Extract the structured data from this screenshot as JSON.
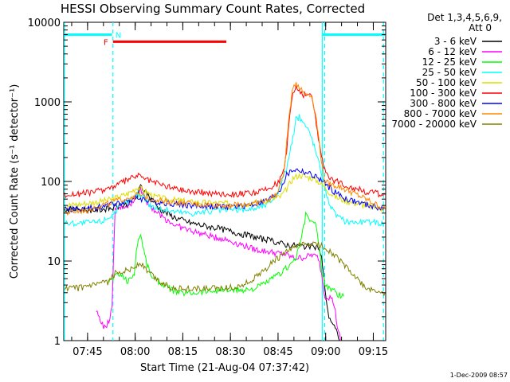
{
  "chart_data": {
    "type": "line",
    "title": "HESSI Observing Summary Count Rates, Corrected",
    "xlabel": "Start Time (21-Aug-04 07:37:42)",
    "ylabel": "Corrected Count Rate (s⁻¹ detector⁻¹)",
    "yscale": "log",
    "ylim": [
      1,
      10000
    ],
    "xlim_minutes": [
      -0.2,
      101.2
    ],
    "x_ticks": [
      {
        "label": "07:45",
        "t": 7.3
      },
      {
        "label": "08:00",
        "t": 22.3
      },
      {
        "label": "08:15",
        "t": 37.3
      },
      {
        "label": "08:30",
        "t": 52.3
      },
      {
        "label": "08:45",
        "t": 67.3
      },
      {
        "label": "09:00",
        "t": 82.3
      },
      {
        "label": "09:15",
        "t": 97.3
      }
    ],
    "y_ticks": [
      {
        "label": "1",
        "v": 1
      },
      {
        "label": "10",
        "v": 10
      },
      {
        "label": "100",
        "v": 100
      },
      {
        "label": "1000",
        "v": 1000
      },
      {
        "label": "10000",
        "v": 10000
      }
    ],
    "legend_header": [
      "Det 1,3,4,5,6,9,",
      "Att 0"
    ],
    "legend_position": "right",
    "series": [
      {
        "name": "3 - 6 keV",
        "color": "#000000",
        "points": [
          [
            0,
            45
          ],
          [
            10,
            44
          ],
          [
            15,
            46
          ],
          [
            20,
            52
          ],
          [
            23,
            65
          ],
          [
            24,
            88
          ],
          [
            26,
            70
          ],
          [
            30,
            45
          ],
          [
            35,
            35
          ],
          [
            40,
            30
          ],
          [
            50,
            25
          ],
          [
            60,
            20
          ],
          [
            65,
            18
          ],
          [
            70,
            16
          ],
          [
            75,
            15.5
          ],
          [
            79,
            15
          ],
          [
            80,
            15
          ],
          [
            81,
            11
          ],
          [
            82,
            5
          ],
          [
            83,
            2.2
          ],
          [
            84,
            1.8
          ],
          [
            85,
            1.5
          ],
          [
            86,
            1.2
          ],
          [
            87,
            1
          ]
        ]
      },
      {
        "name": "6 - 12 keV",
        "color": "#ff00ff",
        "points": [
          [
            10,
            2.3
          ],
          [
            11,
            2.0
          ],
          [
            12,
            1.6
          ],
          [
            13,
            1.4
          ],
          [
            14,
            1.8
          ],
          [
            15,
            2.5
          ],
          [
            16,
            45
          ],
          [
            18,
            48
          ],
          [
            20,
            50
          ],
          [
            22,
            55
          ],
          [
            23,
            75
          ],
          [
            24,
            80
          ],
          [
            26,
            55
          ],
          [
            30,
            38
          ],
          [
            35,
            28
          ],
          [
            40,
            24
          ],
          [
            45,
            21
          ],
          [
            50,
            19
          ],
          [
            55,
            16.5
          ],
          [
            60,
            14
          ],
          [
            65,
            13
          ],
          [
            70,
            12
          ],
          [
            72,
            11
          ],
          [
            75,
            11
          ],
          [
            78,
            12
          ],
          [
            80,
            11
          ],
          [
            81,
            7
          ],
          [
            82,
            3.6
          ],
          [
            84,
            3.5
          ],
          [
            85,
            2.8
          ],
          [
            86,
            1.5
          ],
          [
            87,
            1
          ]
        ]
      },
      {
        "name": "12 - 25 keV",
        "color": "#00ff00",
        "points": [
          [
            14,
            5.5
          ],
          [
            15,
            6
          ],
          [
            16,
            6.5
          ],
          [
            18,
            6.8
          ],
          [
            20,
            5.5
          ],
          [
            22,
            7
          ],
          [
            23,
            17
          ],
          [
            24,
            22
          ],
          [
            25,
            14
          ],
          [
            26,
            9
          ],
          [
            28,
            6
          ],
          [
            30,
            5.5
          ],
          [
            33,
            4.5
          ],
          [
            36,
            4
          ],
          [
            40,
            4
          ],
          [
            45,
            4.2
          ],
          [
            50,
            4.3
          ],
          [
            55,
            4.3
          ],
          [
            60,
            4.5
          ],
          [
            64,
            5.5
          ],
          [
            68,
            7
          ],
          [
            71,
            9
          ],
          [
            73,
            11
          ],
          [
            75,
            22
          ],
          [
            76,
            38
          ],
          [
            77,
            35
          ],
          [
            78,
            30
          ],
          [
            79,
            30
          ],
          [
            80,
            18
          ],
          [
            81,
            8
          ],
          [
            82,
            5
          ],
          [
            84,
            4.5
          ],
          [
            86,
            3.8
          ],
          [
            88,
            3.6
          ]
        ]
      },
      {
        "name": "25 - 50 keV",
        "color": "#00ffff",
        "points": [
          [
            0,
            30
          ],
          [
            5,
            30
          ],
          [
            10,
            31
          ],
          [
            12,
            32
          ],
          [
            15,
            38
          ],
          [
            18,
            50
          ],
          [
            21,
            58
          ],
          [
            23,
            70
          ],
          [
            25,
            65
          ],
          [
            27,
            50
          ],
          [
            30,
            45
          ],
          [
            35,
            42
          ],
          [
            40,
            40
          ],
          [
            45,
            42
          ],
          [
            50,
            44
          ],
          [
            55,
            44
          ],
          [
            60,
            46
          ],
          [
            64,
            52
          ],
          [
            67,
            70
          ],
          [
            70,
            150
          ],
          [
            72,
            350
          ],
          [
            73,
            600
          ],
          [
            74,
            650
          ],
          [
            75,
            580
          ],
          [
            76,
            500
          ],
          [
            77,
            430
          ],
          [
            78,
            350
          ],
          [
            79,
            250
          ],
          [
            80,
            180
          ],
          [
            81,
            130
          ],
          [
            82,
            90
          ],
          [
            83,
            60
          ],
          [
            85,
            40
          ],
          [
            88,
            32
          ],
          [
            92,
            31
          ],
          [
            97,
            31
          ],
          [
            101,
            30
          ]
        ]
      },
      {
        "name": "50 - 100 keV",
        "color": "#dddd00",
        "points": [
          [
            0,
            50
          ],
          [
            5,
            52
          ],
          [
            10,
            55
          ],
          [
            15,
            60
          ],
          [
            20,
            70
          ],
          [
            23,
            85
          ],
          [
            25,
            78
          ],
          [
            28,
            65
          ],
          [
            32,
            60
          ],
          [
            36,
            58
          ],
          [
            40,
            55
          ],
          [
            45,
            54
          ],
          [
            50,
            53
          ],
          [
            55,
            52
          ],
          [
            60,
            54
          ],
          [
            64,
            58
          ],
          [
            68,
            64
          ],
          [
            70,
            80
          ],
          [
            72,
            110
          ],
          [
            74,
            120
          ],
          [
            76,
            115
          ],
          [
            78,
            110
          ],
          [
            80,
            100
          ],
          [
            82,
            85
          ],
          [
            84,
            70
          ],
          [
            86,
            62
          ],
          [
            90,
            55
          ],
          [
            95,
            50
          ],
          [
            101,
            45
          ]
        ]
      },
      {
        "name": "100 - 300 keV",
        "color": "#ff0000",
        "points": [
          [
            0,
            68
          ],
          [
            5,
            70
          ],
          [
            10,
            75
          ],
          [
            15,
            85
          ],
          [
            20,
            105
          ],
          [
            23,
            120
          ],
          [
            25,
            110
          ],
          [
            28,
            98
          ],
          [
            32,
            88
          ],
          [
            36,
            80
          ],
          [
            40,
            75
          ],
          [
            45,
            72
          ],
          [
            50,
            70
          ],
          [
            55,
            70
          ],
          [
            60,
            72
          ],
          [
            64,
            80
          ],
          [
            67,
            95
          ],
          [
            69,
            130
          ],
          [
            70,
            250
          ],
          [
            71,
            700
          ],
          [
            72,
            1300
          ],
          [
            73,
            1500
          ],
          [
            74,
            1400
          ],
          [
            75,
            1250
          ],
          [
            76,
            1200
          ],
          [
            77,
            1250
          ],
          [
            78,
            1100
          ],
          [
            79,
            700
          ],
          [
            80,
            350
          ],
          [
            81,
            200
          ],
          [
            82,
            140
          ],
          [
            84,
            110
          ],
          [
            86,
            100
          ],
          [
            90,
            85
          ],
          [
            95,
            75
          ],
          [
            101,
            68
          ]
        ]
      },
      {
        "name": "300 - 800 keV",
        "color": "#0000ff",
        "points": [
          [
            0,
            45
          ],
          [
            5,
            45
          ],
          [
            10,
            47
          ],
          [
            15,
            52
          ],
          [
            20,
            58
          ],
          [
            23,
            62
          ],
          [
            25,
            60
          ],
          [
            28,
            56
          ],
          [
            32,
            54
          ],
          [
            36,
            52
          ],
          [
            40,
            50
          ],
          [
            45,
            49
          ],
          [
            50,
            48
          ],
          [
            55,
            49
          ],
          [
            60,
            52
          ],
          [
            64,
            58
          ],
          [
            66,
            65
          ],
          [
            68,
            80
          ],
          [
            70,
            120
          ],
          [
            72,
            140
          ],
          [
            74,
            138
          ],
          [
            76,
            130
          ],
          [
            78,
            120
          ],
          [
            80,
            110
          ],
          [
            82,
            95
          ],
          [
            84,
            80
          ],
          [
            86,
            70
          ],
          [
            88,
            62
          ],
          [
            92,
            55
          ],
          [
            96,
            50
          ],
          [
            101,
            45
          ]
        ]
      },
      {
        "name": "800 - 7000 keV",
        "color": "#ff8800",
        "points": [
          [
            0,
            40
          ],
          [
            5,
            42
          ],
          [
            10,
            48
          ],
          [
            15,
            55
          ],
          [
            20,
            62
          ],
          [
            23,
            68
          ],
          [
            25,
            65
          ],
          [
            28,
            60
          ],
          [
            32,
            57
          ],
          [
            36,
            54
          ],
          [
            40,
            52
          ],
          [
            45,
            51
          ],
          [
            50,
            50
          ],
          [
            55,
            51
          ],
          [
            60,
            53
          ],
          [
            64,
            58
          ],
          [
            67,
            70
          ],
          [
            69,
            120
          ],
          [
            70,
            300
          ],
          [
            71,
            800
          ],
          [
            72,
            1600
          ],
          [
            73,
            1750
          ],
          [
            74,
            1550
          ],
          [
            75,
            1350
          ],
          [
            76,
            1250
          ],
          [
            77,
            1300
          ],
          [
            78,
            1150
          ],
          [
            79,
            750
          ],
          [
            80,
            380
          ],
          [
            81,
            180
          ],
          [
            82,
            100
          ],
          [
            84,
            92
          ],
          [
            86,
            88
          ],
          [
            90,
            75
          ],
          [
            95,
            60
          ],
          [
            101,
            45
          ]
        ]
      },
      {
        "name": "7000 - 20000 keV",
        "color": "#808000",
        "points": [
          [
            0,
            4.5
          ],
          [
            5,
            4.6
          ],
          [
            10,
            5
          ],
          [
            14,
            5.5
          ],
          [
            16,
            7
          ],
          [
            18,
            7.5
          ],
          [
            20,
            7.8
          ],
          [
            22,
            8.2
          ],
          [
            23,
            9
          ],
          [
            24,
            9.5
          ],
          [
            26,
            7.5
          ],
          [
            28,
            6.5
          ],
          [
            30,
            5.5
          ],
          [
            33,
            4.8
          ],
          [
            36,
            4.5
          ],
          [
            40,
            4.5
          ],
          [
            45,
            4.5
          ],
          [
            50,
            4.6
          ],
          [
            55,
            4.8
          ],
          [
            58,
            5.5
          ],
          [
            62,
            7
          ],
          [
            66,
            10
          ],
          [
            70,
            13
          ],
          [
            72,
            14.5
          ],
          [
            75,
            16
          ],
          [
            78,
            16.5
          ],
          [
            80,
            16
          ],
          [
            82,
            15
          ],
          [
            84,
            13
          ],
          [
            86,
            11
          ],
          [
            88,
            9
          ],
          [
            90,
            7.5
          ],
          [
            92,
            6
          ],
          [
            95,
            4.5
          ],
          [
            98,
            4.2
          ],
          [
            101,
            4
          ]
        ]
      }
    ],
    "observing_flags": [
      {
        "label": "",
        "name": "night-1",
        "color": "#00ffff",
        "start": 0,
        "end": 15,
        "level": 7000
      },
      {
        "label": "N",
        "name": "night-start",
        "color": "#00ffff",
        "start": 15.3,
        "end": 15.3,
        "level": 7000
      },
      {
        "label": "",
        "name": "night-2",
        "color": "#00ffff",
        "start": 81.2,
        "end": 101,
        "level": 7000
      },
      {
        "label": "F",
        "name": "flare",
        "color": "#ff0000",
        "start": 15.3,
        "end": 51,
        "level": 5700
      }
    ],
    "vertical_markers": [
      {
        "t": 0,
        "style": "solid",
        "color": "#00ffff"
      },
      {
        "t": 15.3,
        "style": "dashed",
        "color": "#00ffff"
      },
      {
        "t": 81.2,
        "style": "solid",
        "color": "#00ffff"
      },
      {
        "t": 82.0,
        "style": "dashed",
        "color": "#00ffff"
      },
      {
        "t": 100.5,
        "style": "dashed",
        "color": "#00ffff"
      }
    ],
    "grid": false
  },
  "footer_timestamp": "1-Dec-2009 08:57"
}
